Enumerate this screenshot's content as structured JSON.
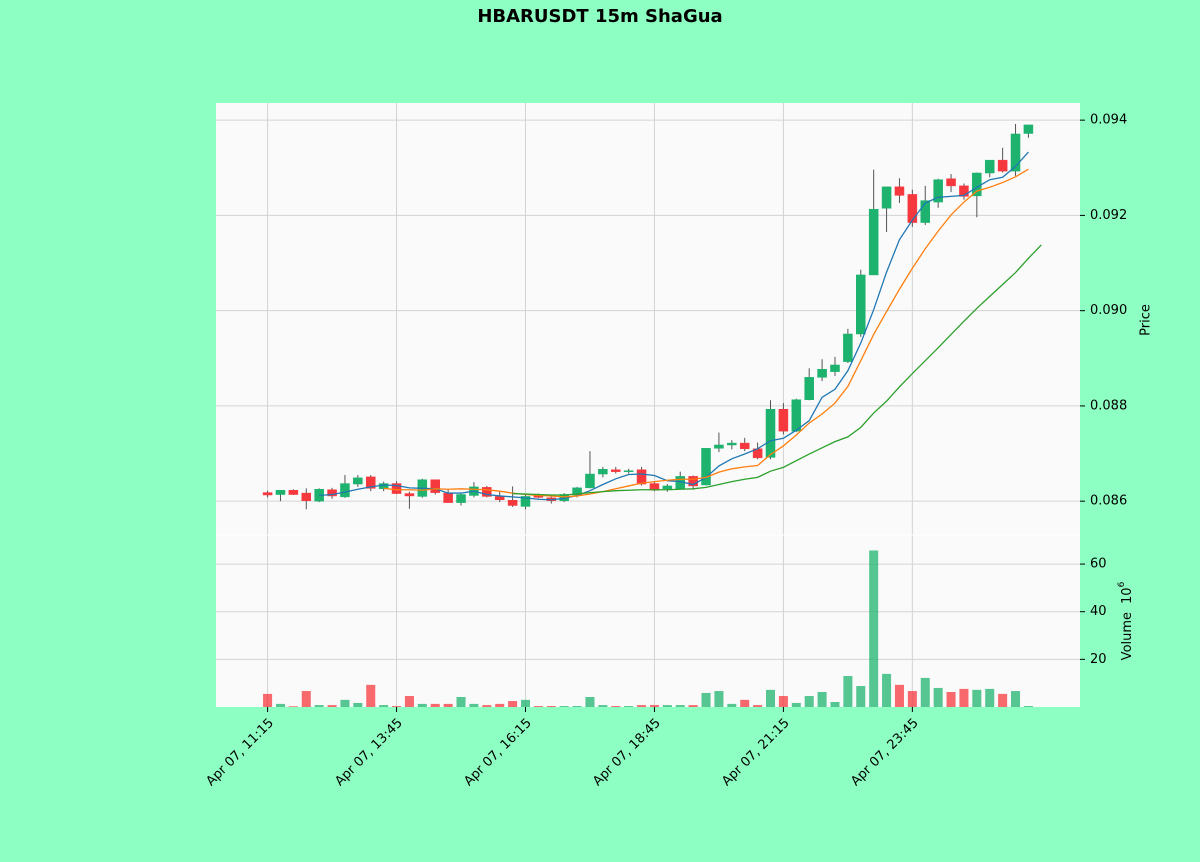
{
  "chart_data": [
    {
      "type": "candlestick",
      "title": "HBARUSDT 15m ShaGua",
      "ylabel": "Price",
      "up_color": "#1db36e",
      "down_color": "#f5383e",
      "wick_color": "#555555",
      "xlim": [
        -4,
        63
      ],
      "ylim": [
        0.08529,
        0.09436
      ],
      "xticks": [
        {
          "value": 0,
          "label": "Apr 07, 11:15"
        },
        {
          "value": 10,
          "label": "Apr 07, 13:45"
        },
        {
          "value": 20,
          "label": "Apr 07, 16:15"
        },
        {
          "value": 30,
          "label": "Apr 07, 18:45"
        },
        {
          "value": 40,
          "label": "Apr 07, 21:15"
        },
        {
          "value": 50,
          "label": "Apr 07, 23:45"
        }
      ],
      "yticks": [
        0.086,
        0.088,
        {
          "value": 0.09,
          "label": "0.090"
        },
        0.092,
        0.094
      ],
      "grid": true,
      "open": [
        0.08618,
        0.08614,
        0.08623,
        0.08617,
        0.086,
        0.08624,
        0.08609,
        0.08636,
        0.08651,
        0.08626,
        0.08637,
        0.08616,
        0.0861,
        0.08645,
        0.08617,
        0.08597,
        0.08612,
        0.08629,
        0.0861,
        0.08602,
        0.08589,
        0.08612,
        0.08607,
        0.08601,
        0.08613,
        0.08628,
        0.08657,
        0.08666,
        0.08662,
        0.08666,
        0.08637,
        0.08626,
        0.08626,
        0.08652,
        0.08634,
        0.08711,
        0.08718,
        0.08722,
        0.0871,
        0.08692,
        0.08793,
        0.08747,
        0.08813,
        0.0886,
        0.08872,
        0.08893,
        0.08951,
        0.09075,
        0.09215,
        0.0926,
        0.09244,
        0.09185,
        0.09228,
        0.09277,
        0.09262,
        0.09241,
        0.09289,
        0.09316,
        0.09293,
        0.09372
      ],
      "high": [
        0.08622,
        0.08622,
        0.08625,
        0.08627,
        0.08627,
        0.08628,
        0.08655,
        0.08655,
        0.08655,
        0.08641,
        0.08642,
        0.0862,
        0.08647,
        0.08645,
        0.08625,
        0.08617,
        0.0864,
        0.08632,
        0.0862,
        0.08631,
        0.08615,
        0.08616,
        0.08612,
        0.08617,
        0.0863,
        0.08705,
        0.08672,
        0.08672,
        0.08668,
        0.08672,
        0.0864,
        0.08636,
        0.08662,
        0.08654,
        0.08711,
        0.08744,
        0.08728,
        0.08733,
        0.08723,
        0.08812,
        0.08806,
        0.08815,
        0.08879,
        0.08898,
        0.08903,
        0.08962,
        0.09086,
        0.09296,
        0.0926,
        0.09278,
        0.09254,
        0.09262,
        0.09277,
        0.09287,
        0.09267,
        0.0929,
        0.09316,
        0.09342,
        0.09392,
        0.09388
      ],
      "low": [
        0.08608,
        0.086,
        0.08613,
        0.08583,
        0.08598,
        0.08605,
        0.08607,
        0.0863,
        0.08621,
        0.08621,
        0.08615,
        0.08584,
        0.08607,
        0.08614,
        0.08597,
        0.08591,
        0.08608,
        0.08608,
        0.08598,
        0.08588,
        0.08583,
        0.08606,
        0.08595,
        0.08598,
        0.08608,
        0.08627,
        0.0865,
        0.08658,
        0.08658,
        0.08633,
        0.08621,
        0.0862,
        0.08625,
        0.08624,
        0.08633,
        0.08703,
        0.08709,
        0.08705,
        0.08688,
        0.08688,
        0.0874,
        0.08745,
        0.08812,
        0.08852,
        0.08863,
        0.0889,
        0.08945,
        0.09075,
        0.09165,
        0.09226,
        0.09176,
        0.0918,
        0.09216,
        0.09249,
        0.09233,
        0.09196,
        0.0928,
        0.0929,
        0.09283,
        0.09363
      ],
      "close": [
        0.08613,
        0.08623,
        0.08614,
        0.08601,
        0.08625,
        0.08611,
        0.08637,
        0.08649,
        0.08627,
        0.08637,
        0.08616,
        0.08611,
        0.08645,
        0.08618,
        0.08597,
        0.08614,
        0.0863,
        0.0861,
        0.08603,
        0.08591,
        0.0861,
        0.08608,
        0.08601,
        0.08614,
        0.08628,
        0.08657,
        0.08667,
        0.08662,
        0.08664,
        0.08636,
        0.08623,
        0.08632,
        0.08652,
        0.08632,
        0.08711,
        0.08718,
        0.08722,
        0.0871,
        0.08691,
        0.08793,
        0.08747,
        0.08813,
        0.0886,
        0.08877,
        0.08886,
        0.08951,
        0.09075,
        0.09213,
        0.0926,
        0.09242,
        0.09185,
        0.09231,
        0.09275,
        0.09262,
        0.0924,
        0.09289,
        0.09316,
        0.09293,
        0.09371,
        0.0939
      ],
      "moving_averages": [
        {
          "color": "#1f77b4",
          "values": [
            null,
            null,
            null,
            null,
            0.08612,
            0.08614,
            0.08619,
            0.08625,
            0.0863,
            0.08634,
            0.08633,
            0.08628,
            0.08627,
            0.08626,
            0.08617,
            0.08617,
            0.08621,
            0.08614,
            0.08611,
            0.08609,
            0.08607,
            0.08604,
            0.08603,
            0.08606,
            0.08612,
            0.08622,
            0.08635,
            0.08647,
            0.08656,
            0.08657,
            0.08654,
            0.08643,
            0.08641,
            0.08635,
            0.0865,
            0.08674,
            0.08689,
            0.08699,
            0.0871,
            0.08727,
            0.08732,
            0.08749,
            0.08769,
            0.08818,
            0.08835,
            0.08874,
            0.08932,
            0.09002,
            0.09081,
            0.09149,
            0.0919,
            0.09226,
            0.09238,
            0.0924,
            0.09242,
            0.09259,
            0.09275,
            0.0928,
            0.09303,
            0.09333
          ]
        },
        {
          "color": "#ff7f0e",
          "values": [
            null,
            null,
            null,
            null,
            null,
            null,
            null,
            null,
            null,
            0.08627,
            0.08624,
            0.08624,
            0.08623,
            0.08626,
            0.08625,
            0.08626,
            0.08625,
            0.08624,
            0.08621,
            0.08617,
            0.08614,
            0.08612,
            0.08611,
            0.08609,
            0.08611,
            0.08615,
            0.0862,
            0.08626,
            0.08632,
            0.08638,
            0.08641,
            0.08644,
            0.08646,
            0.08646,
            0.0865,
            0.08661,
            0.08668,
            0.08672,
            0.08675,
            0.08698,
            0.08716,
            0.08739,
            0.08764,
            0.08783,
            0.08806,
            0.08841,
            0.08895,
            0.0895,
            0.08998,
            0.09045,
            0.09089,
            0.0913,
            0.09167,
            0.09201,
            0.09228,
            0.09251,
            0.09259,
            0.09269,
            0.09281,
            0.09297
          ]
        },
        {
          "color": "#2ca02c",
          "values": [
            null,
            null,
            null,
            null,
            null,
            null,
            null,
            null,
            null,
            null,
            null,
            null,
            null,
            null,
            null,
            null,
            null,
            null,
            null,
            0.08616,
            0.08615,
            0.08614,
            0.08613,
            0.08613,
            0.08615,
            0.08618,
            0.0862,
            0.08622,
            0.08623,
            0.08624,
            0.08624,
            0.08624,
            0.08625,
            0.08626,
            0.08629,
            0.08635,
            0.08641,
            0.08646,
            0.0865,
            0.08663,
            0.08671,
            0.08685,
            0.08699,
            0.08712,
            0.08725,
            0.08735,
            0.08755,
            0.08785,
            0.0881,
            0.0884,
            0.08868,
            0.08895,
            0.08922,
            0.0895,
            0.08978,
            0.09005,
            0.0903,
            0.09055,
            0.0908,
            0.0911,
            0.09138
          ]
        }
      ]
    },
    {
      "type": "volume",
      "ylabel": "Volume",
      "scale_base": "10",
      "scale_exponent": "6",
      "ylim": [
        0,
        72.2
      ],
      "yticks": [
        20,
        40,
        60
      ],
      "grid": true,
      "values": [
        5.5,
        1.3,
        0.3,
        6.7,
        0.8,
        0.8,
        3,
        1.7,
        9.3,
        0.8,
        0.4,
        4.6,
        1.3,
        1.3,
        1.3,
        4.2,
        1.3,
        0.8,
        1.3,
        2.5,
        3,
        0.4,
        0.4,
        0.4,
        0.4,
        4.2,
        0.8,
        0.4,
        0.4,
        0.8,
        0.8,
        0.8,
        0.8,
        0.8,
        5.9,
        6.7,
        1.3,
        3,
        0.8,
        7.2,
        4.6,
        1.7,
        4.6,
        6.3,
        2.1,
        13,
        8.8,
        65.7,
        13.9,
        9.3,
        6.7,
        12.2,
        8,
        6.3,
        7.6,
        7.2,
        7.6,
        5.5,
        6.7,
        0.4
      ]
    }
  ]
}
